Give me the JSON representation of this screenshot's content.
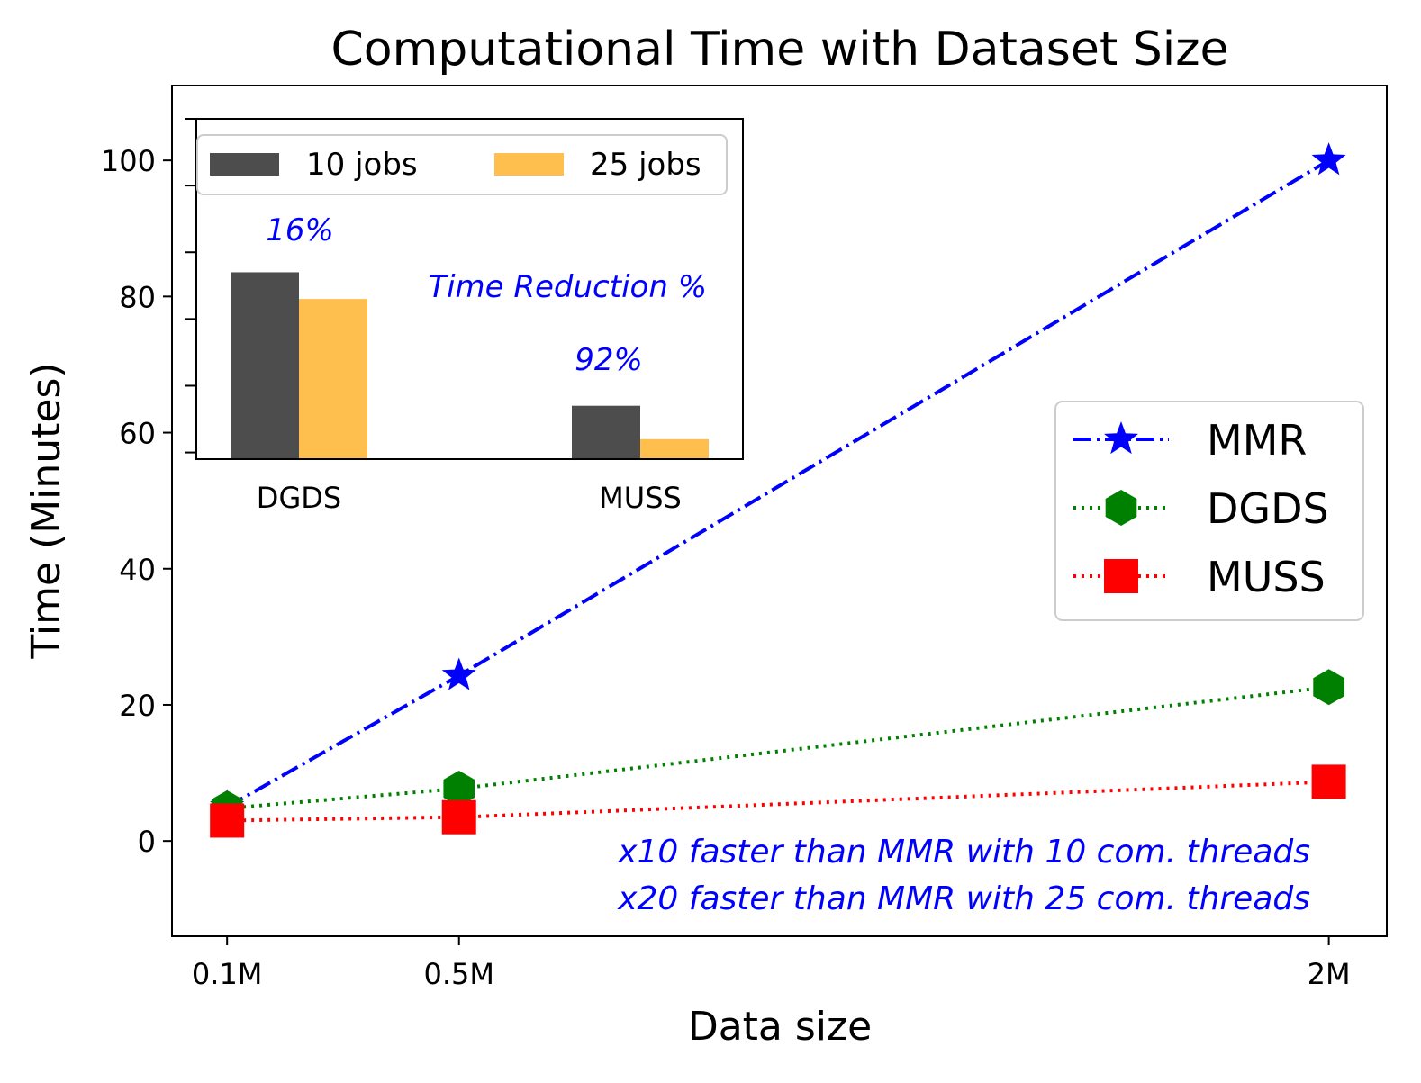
{
  "chart_data": {
    "type": "line",
    "title": "Computational Time with Dataset Size",
    "xlabel": "Data size",
    "ylabel": "Time (Minutes)",
    "x": [
      0.1,
      0.5,
      2
    ],
    "xtick_labels": [
      "0.1M",
      "0.5M",
      "2M"
    ],
    "xlim": [
      0.005,
      2.1
    ],
    "ylim": [
      -14,
      111
    ],
    "yticks": [
      0,
      20,
      40,
      60,
      80,
      100
    ],
    "series": [
      {
        "name": "MMR",
        "values": [
          5,
          24.3,
          100
        ],
        "color": "#0000ff",
        "marker": "star",
        "linestyle": "dashdot"
      },
      {
        "name": "DGDS",
        "values": [
          4.8,
          7.7,
          22.6
        ],
        "color": "#008000",
        "marker": "hexagon",
        "linestyle": "dotted"
      },
      {
        "name": "MUSS",
        "values": [
          3,
          3.5,
          8.7
        ],
        "color": "#ff0000",
        "marker": "square",
        "linestyle": "dotted"
      }
    ],
    "legend_position": "center-right",
    "annotations": [
      "x10 faster than MMR with 10 com. threads",
      "x20 faster than MMR with 25 com. threads"
    ],
    "annotation_color": "#0000ff",
    "inset": {
      "type": "bar",
      "categories": [
        "DGDS",
        "MUSS"
      ],
      "series": [
        {
          "name": "10 jobs",
          "values": [
            89,
            69
          ],
          "color": "#4d4d4d"
        },
        {
          "name": "25 jobs",
          "values": [
            85,
            64
          ],
          "color": "#ffbf4f"
        }
      ],
      "ylim": [
        61,
        112
      ],
      "bar_labels": [
        "16%",
        "92%"
      ],
      "annotation": "Time Reduction %",
      "legend_position": "top"
    }
  }
}
